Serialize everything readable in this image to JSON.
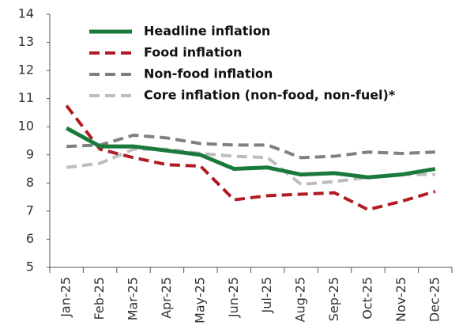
{
  "chart_data": {
    "type": "line",
    "categories": [
      "Jan-25",
      "Feb-25",
      "Mar-25",
      "Apr-25",
      "May-25",
      "Jun-25",
      "Jul-25",
      "Aug-25",
      "Sep-25",
      "Oct-25",
      "Nov-25",
      "Dec-25"
    ],
    "series": [
      {
        "name": "Headline inflation",
        "color": "#1a7a3c",
        "dash": "solid",
        "values": [
          9.95,
          9.3,
          9.3,
          9.15,
          9.0,
          8.5,
          8.55,
          8.3,
          8.35,
          8.2,
          8.3,
          8.5
        ]
      },
      {
        "name": "Food inflation",
        "color": "#b01c22",
        "dash": "dashed",
        "values": [
          10.75,
          9.2,
          8.9,
          8.65,
          8.6,
          7.4,
          7.55,
          7.6,
          7.65,
          7.05,
          7.35,
          7.7
        ]
      },
      {
        "name": "Non-food inflation",
        "color": "#808080",
        "dash": "dashed",
        "values": [
          9.3,
          9.35,
          9.7,
          9.6,
          9.4,
          9.35,
          9.35,
          8.9,
          8.95,
          9.1,
          9.05,
          9.1
        ]
      },
      {
        "name": "Core inflation (non-food, non-fuel)*",
        "color": "#bdbdbd",
        "dash": "dashed",
        "values": [
          8.55,
          8.7,
          9.2,
          9.2,
          9.05,
          8.95,
          8.9,
          7.95,
          8.05,
          8.2,
          8.3,
          8.3
        ]
      }
    ],
    "ylim": [
      5,
      14
    ],
    "yticks": [
      5,
      6,
      7,
      8,
      9,
      10,
      11,
      12,
      13,
      14
    ],
    "grid": false
  }
}
